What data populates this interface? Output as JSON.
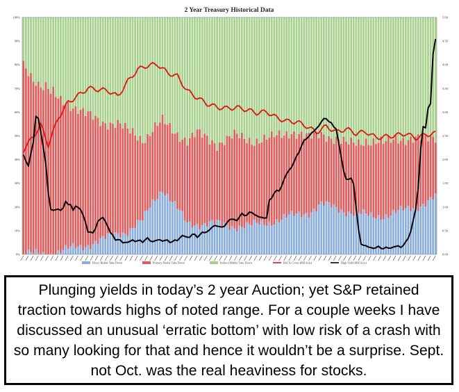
{
  "chart_data": {
    "type": "bar",
    "title": "2 Year Treasury Historical Data",
    "y_left_ticks": [
      "0%",
      "10%",
      "20%",
      "30%",
      "40%",
      "50%",
      "60%",
      "70%",
      "80%",
      "90%",
      "100%"
    ],
    "y_right_ticks": [
      "0.00",
      "0.50",
      "1.00",
      "1.50",
      "2.00",
      "2.50",
      "3.00",
      "3.50",
      "4.00",
      "4.50",
      "5.00"
    ],
    "ylim_left": [
      0,
      100
    ],
    "ylim_right": [
      0,
      5
    ],
    "stacked": true,
    "auction_count": 167,
    "colors": {
      "direct": "#8aaedc",
      "primary": "#e05d5d",
      "indirect": "#a9d18e",
      "btc": "#e0140e",
      "yield": "#000000"
    },
    "legend": [
      {
        "label": "Direct Bidder Take Down",
        "color": "#8aaedc"
      },
      {
        "label": "Primary Dealer Take Down",
        "color": "#e05d5d"
      },
      {
        "label": "Indirect Bidder Take Down",
        "color": "#a9d18e"
      },
      {
        "label": "Bid To Cover (RH Axis)",
        "color": "#e0140e"
      },
      {
        "label": "High Yield (RH Axis)",
        "color": "#000000"
      }
    ],
    "series_bars": {
      "direct_pct_knots": [
        [
          0,
          0
        ],
        [
          10,
          0
        ],
        [
          18,
          2
        ],
        [
          25,
          4
        ],
        [
          32,
          6
        ],
        [
          38,
          9
        ],
        [
          42,
          10
        ],
        [
          48,
          14
        ],
        [
          52,
          22
        ],
        [
          56,
          28
        ],
        [
          60,
          22
        ],
        [
          66,
          13
        ],
        [
          75,
          13
        ],
        [
          85,
          12
        ],
        [
          92,
          12
        ],
        [
          100,
          14
        ],
        [
          108,
          16
        ],
        [
          115,
          18
        ],
        [
          120,
          21
        ],
        [
          128,
          19
        ],
        [
          135,
          17
        ],
        [
          140,
          16
        ],
        [
          148,
          17
        ],
        [
          155,
          19
        ],
        [
          162,
          22
        ],
        [
          166,
          24
        ]
      ],
      "primary_pct_knots": [
        [
          0,
          80
        ],
        [
          6,
          72
        ],
        [
          12,
          66
        ],
        [
          18,
          62
        ],
        [
          25,
          55
        ],
        [
          32,
          50
        ],
        [
          38,
          46
        ],
        [
          44,
          40
        ],
        [
          50,
          32
        ],
        [
          56,
          28
        ],
        [
          62,
          32
        ],
        [
          70,
          38
        ],
        [
          78,
          34
        ],
        [
          85,
          38
        ],
        [
          92,
          36
        ],
        [
          100,
          35
        ],
        [
          108,
          36
        ],
        [
          115,
          31
        ],
        [
          122,
          30
        ],
        [
          130,
          28
        ],
        [
          138,
          32
        ],
        [
          145,
          30
        ],
        [
          150,
          32
        ],
        [
          158,
          28
        ],
        [
          166,
          26
        ]
      ]
    },
    "series_lines": [
      {
        "name": "Bid To Cover (RH Axis)",
        "axis": "right",
        "knots": [
          [
            0,
            2.15
          ],
          [
            4,
            2.45
          ],
          [
            7,
            2.7
          ],
          [
            10,
            2.3
          ],
          [
            14,
            2.9
          ],
          [
            18,
            3.25
          ],
          [
            22,
            3.4
          ],
          [
            26,
            3.55
          ],
          [
            30,
            3.5
          ],
          [
            34,
            3.45
          ],
          [
            38,
            3.3
          ],
          [
            42,
            3.6
          ],
          [
            46,
            3.85
          ],
          [
            50,
            3.95
          ],
          [
            54,
            4.0
          ],
          [
            58,
            3.85
          ],
          [
            62,
            3.8
          ],
          [
            66,
            3.5
          ],
          [
            70,
            3.35
          ],
          [
            74,
            3.2
          ],
          [
            78,
            3.1
          ],
          [
            82,
            3.05
          ],
          [
            86,
            3.05
          ],
          [
            90,
            3.0
          ],
          [
            94,
            2.95
          ],
          [
            98,
            3.0
          ],
          [
            102,
            2.9
          ],
          [
            106,
            2.85
          ],
          [
            110,
            2.85
          ],
          [
            114,
            2.75
          ],
          [
            118,
            2.6
          ],
          [
            122,
            2.7
          ],
          [
            126,
            2.55
          ],
          [
            130,
            2.6
          ],
          [
            134,
            2.5
          ],
          [
            138,
            2.55
          ],
          [
            142,
            2.45
          ],
          [
            146,
            2.5
          ],
          [
            150,
            2.55
          ],
          [
            154,
            2.6
          ],
          [
            158,
            2.5
          ],
          [
            162,
            2.55
          ],
          [
            166,
            2.55
          ]
        ],
        "jitter": 0.1
      },
      {
        "name": "High Yield (RH Axis)",
        "axis": "right",
        "knots": [
          [
            0,
            2.1
          ],
          [
            2,
            1.85
          ],
          [
            4,
            2.4
          ],
          [
            5,
            2.9
          ],
          [
            6,
            2.85
          ],
          [
            7,
            2.6
          ],
          [
            9,
            1.9
          ],
          [
            10,
            1.3
          ],
          [
            11,
            0.95
          ],
          [
            13,
            0.93
          ],
          [
            16,
            0.97
          ],
          [
            17,
            1.1
          ],
          [
            19,
            1.05
          ],
          [
            20,
            0.92
          ],
          [
            21,
            1.02
          ],
          [
            23,
            0.96
          ],
          [
            24,
            0.82
          ],
          [
            26,
            0.5
          ],
          [
            28,
            0.43
          ],
          [
            30,
            0.7
          ],
          [
            32,
            0.78
          ],
          [
            34,
            0.6
          ],
          [
            35,
            0.45
          ],
          [
            37,
            0.33
          ],
          [
            40,
            0.26
          ],
          [
            42,
            0.25
          ],
          [
            44,
            0.3
          ],
          [
            46,
            0.28
          ],
          [
            48,
            0.28
          ],
          [
            50,
            0.33
          ],
          [
            52,
            0.27
          ],
          [
            54,
            0.3
          ],
          [
            56,
            0.3
          ],
          [
            58,
            0.28
          ],
          [
            60,
            0.27
          ],
          [
            62,
            0.3
          ],
          [
            64,
            0.4
          ],
          [
            66,
            0.35
          ],
          [
            68,
            0.42
          ],
          [
            70,
            0.38
          ],
          [
            72,
            0.45
          ],
          [
            74,
            0.48
          ],
          [
            76,
            0.57
          ],
          [
            78,
            0.62
          ],
          [
            80,
            0.55
          ],
          [
            82,
            0.68
          ],
          [
            84,
            0.75
          ],
          [
            86,
            0.72
          ],
          [
            88,
            0.85
          ],
          [
            90,
            0.83
          ],
          [
            92,
            0.9
          ],
          [
            94,
            0.8
          ],
          [
            96,
            0.78
          ],
          [
            98,
            0.77
          ],
          [
            99,
            1.12
          ],
          [
            101,
            1.3
          ],
          [
            103,
            1.35
          ],
          [
            104,
            1.45
          ],
          [
            106,
            1.7
          ],
          [
            108,
            1.85
          ],
          [
            110,
            2.05
          ],
          [
            112,
            2.3
          ],
          [
            114,
            2.45
          ],
          [
            116,
            2.55
          ],
          [
            118,
            2.65
          ],
          [
            120,
            2.8
          ],
          [
            122,
            2.88
          ],
          [
            124,
            2.75
          ],
          [
            126,
            2.65
          ],
          [
            127,
            2.35
          ],
          [
            128,
            2.05
          ],
          [
            129,
            1.75
          ],
          [
            130,
            1.6
          ],
          [
            132,
            1.58
          ],
          [
            133,
            1.5
          ],
          [
            134,
            1.0
          ],
          [
            135,
            0.5
          ],
          [
            136,
            0.22
          ],
          [
            138,
            0.18
          ],
          [
            140,
            0.13
          ],
          [
            142,
            0.15
          ],
          [
            144,
            0.14
          ],
          [
            146,
            0.13
          ],
          [
            148,
            0.14
          ],
          [
            150,
            0.17
          ],
          [
            152,
            0.16
          ],
          [
            154,
            0.24
          ],
          [
            155,
            0.35
          ],
          [
            156,
            0.5
          ],
          [
            157,
            0.7
          ],
          [
            158,
            0.95
          ],
          [
            159,
            1.4
          ],
          [
            160,
            2.2
          ],
          [
            161,
            2.7
          ],
          [
            162,
            2.65
          ],
          [
            163,
            3.1
          ],
          [
            164,
            3.2
          ],
          [
            165,
            4.2
          ],
          [
            166,
            4.55
          ]
        ],
        "jitter": 0.03
      }
    ]
  },
  "caption": {
    "text": "Plunging yields in today’s 2 year Auction; yet S&P retained traction towards highs of noted range. For a couple weeks I have discussed an unusual ‘erratic bottom’ with low risk of a crash with so many looking for that and hence it wouldn’t be a surprise. Sept. not Oct. was the real heaviness for stocks."
  }
}
